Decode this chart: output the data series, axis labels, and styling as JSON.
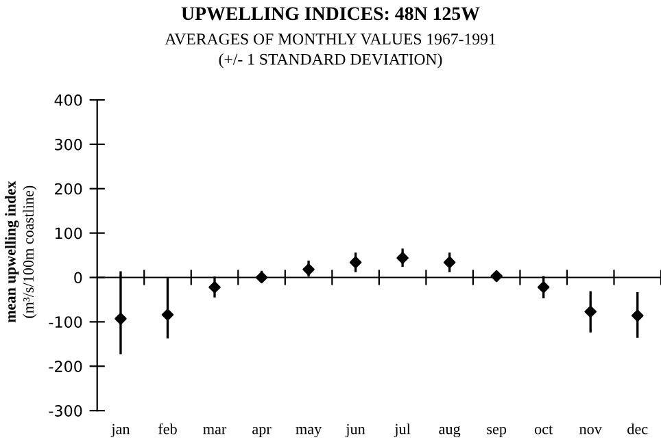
{
  "chart_data": {
    "type": "scatter",
    "title": "UPWELLING INDICES: 48N 125W",
    "subtitle": "AVERAGES OF MONTHLY VALUES 1967-1991\n(+/- 1 STANDARD DEVIATION)",
    "ylabel": "mean upwelling index\n(m³/s/100m coastline)",
    "categories": [
      "jan",
      "feb",
      "mar",
      "apr",
      "may",
      "jun",
      "jul",
      "aug",
      "sep",
      "oct",
      "nov",
      "dec"
    ],
    "values": [
      -93,
      -84,
      -22,
      0,
      18,
      34,
      44,
      34,
      3,
      -22,
      -77,
      -86
    ],
    "errors": [
      [
        -173,
        14
      ],
      [
        -137,
        -1
      ],
      [
        -45,
        2
      ],
      [
        -12,
        15
      ],
      [
        2,
        38
      ],
      [
        12,
        56
      ],
      [
        24,
        65
      ],
      [
        12,
        56
      ],
      [
        0,
        6
      ],
      [
        -47,
        3
      ],
      [
        -124,
        -31
      ],
      [
        -136,
        -33
      ]
    ],
    "color": "#000000",
    "marker": "diamond",
    "ylim": [
      -300,
      400
    ],
    "yticks": [
      -300,
      -200,
      -100,
      0,
      100,
      200,
      300,
      400
    ]
  }
}
